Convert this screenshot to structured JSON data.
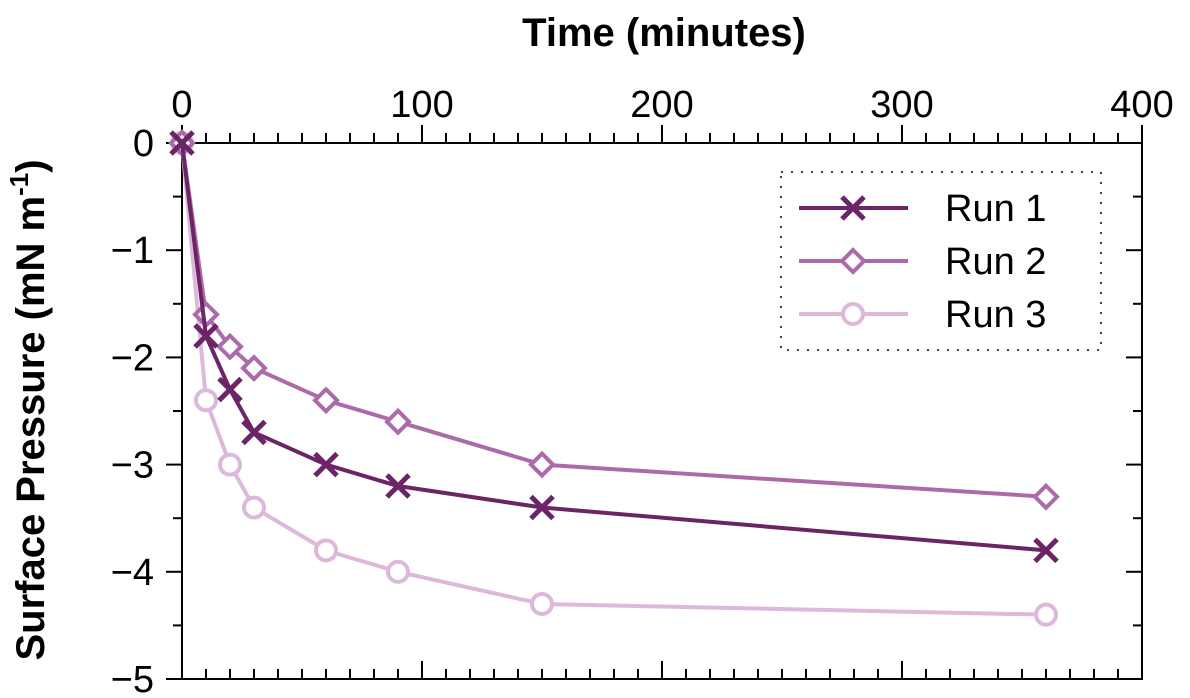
{
  "chart_data": {
    "type": "line",
    "xlabel": "Time (minutes)",
    "ylabel_main": "Surface Pressure (mN m",
    "ylabel_sup": "-1",
    "ylabel_end": ")",
    "xlim": [
      0,
      400
    ],
    "ylim": [
      -5,
      0
    ],
    "x_ticks": [
      0,
      100,
      200,
      300,
      400
    ],
    "x_tick_labels": [
      "0",
      "100",
      "200",
      "300",
      "400"
    ],
    "y_ticks": [
      0,
      -1,
      -2,
      -3,
      -4,
      -5
    ],
    "y_tick_labels": [
      "0",
      "−1",
      "−2",
      "−3",
      "−4",
      "−5"
    ],
    "x_axis_position": "top",
    "grid": false,
    "legend_position": "top-right",
    "series": [
      {
        "name": "Run 1",
        "marker": "x",
        "color": "#6b2466",
        "x": [
          0,
          10,
          20,
          30,
          60,
          90,
          150,
          360
        ],
        "y": [
          0,
          -1.8,
          -2.3,
          -2.7,
          -3.0,
          -3.2,
          -3.4,
          -3.8
        ]
      },
      {
        "name": "Run 2",
        "marker": "diamond",
        "color": "#ad6aaa",
        "x": [
          0,
          10,
          20,
          30,
          60,
          90,
          150,
          360
        ],
        "y": [
          0,
          -1.6,
          -1.9,
          -2.1,
          -2.4,
          -2.6,
          -3.0,
          -3.3
        ]
      },
      {
        "name": "Run 3",
        "marker": "circle",
        "color": "#dcb8da",
        "x": [
          0,
          10,
          20,
          30,
          60,
          90,
          150,
          360
        ],
        "y": [
          0,
          -2.4,
          -3.0,
          -3.4,
          -3.8,
          -4.0,
          -4.3,
          -4.4
        ]
      }
    ]
  }
}
